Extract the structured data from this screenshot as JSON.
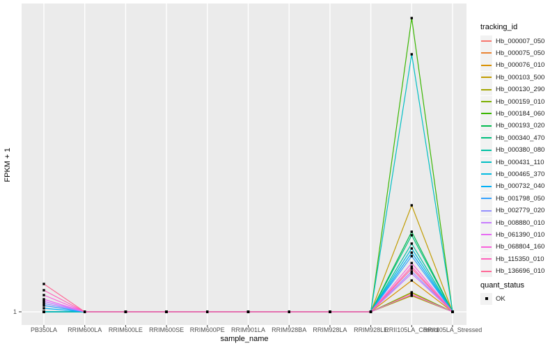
{
  "chart": {
    "x_axis_title": "sample_name",
    "y_axis_title": "FPKM + 1",
    "y_tick_label": "1"
  },
  "legend": {
    "tracking_title": "tracking_id",
    "quant_title": "quant_status",
    "quant_ok_label": "OK"
  },
  "colors": {
    "panel_bg": "#EBEBEB",
    "grid": "#FFFFFF",
    "legend_key_bg": "#F2F2F2",
    "tick_text": "#4D4D4D",
    "point": "#000000",
    "page_bg": "#FFFFFF"
  },
  "chart_data": {
    "type": "line",
    "title": "",
    "xlabel": "sample_name",
    "ylabel": "FPKM + 1",
    "x_tick_labels_overlap": true,
    "y_axis": {
      "ticks": [
        "1"
      ],
      "note": "only the value 1 is labeled on the y axis; series heights below are estimated pixel heights above the y=1 baseline"
    },
    "legend_position": "right",
    "grid": "vertical-white-on-gray",
    "point_marker": "small black square at every vertex (quant_status = OK)",
    "categories": [
      "PB350LA",
      "RRIM600LA",
      "RRIM600LE",
      "RRIM600SE",
      "RRIM600PE",
      "RRIM901LA",
      "RRIM928BA",
      "RRIM928LA",
      "RRIM928LE",
      "RRII105LA_Control",
      "RRII105LA_Stressed"
    ],
    "series": [
      {
        "name": "Hb_000007_050",
        "color": "#F8766D",
        "values": [
          0,
          0,
          0,
          0,
          0,
          0,
          0,
          0,
          0,
          24,
          0
        ]
      },
      {
        "name": "Hb_000075_050",
        "color": "#EA8331",
        "values": [
          0,
          0,
          0,
          0,
          0,
          0,
          0,
          0,
          0,
          27,
          0
        ]
      },
      {
        "name": "Hb_000076_010",
        "color": "#D89000",
        "values": [
          0,
          0,
          0,
          0,
          0,
          0,
          0,
          0,
          0,
          45,
          0
        ]
      },
      {
        "name": "Hb_000103_500",
        "color": "#C09B00",
        "values": [
          0,
          0,
          0,
          0,
          0,
          0,
          0,
          0,
          0,
          153,
          0
        ]
      },
      {
        "name": "Hb_000130_290",
        "color": "#A3A500",
        "values": [
          0,
          0,
          0,
          0,
          0,
          0,
          0,
          0,
          0,
          23,
          0
        ]
      },
      {
        "name": "Hb_000159_010",
        "color": "#7CAE00",
        "values": [
          0,
          0,
          0,
          0,
          0,
          0,
          0,
          0,
          0,
          28,
          0
        ]
      },
      {
        "name": "Hb_000184_060",
        "color": "#39B600",
        "values": [
          0,
          0,
          0,
          0,
          0,
          0,
          0,
          0,
          0,
          422,
          0
        ]
      },
      {
        "name": "Hb_000193_020",
        "color": "#00BB4E",
        "values": [
          0,
          0,
          0,
          0,
          0,
          0,
          0,
          0,
          0,
          115,
          0
        ]
      },
      {
        "name": "Hb_000340_470",
        "color": "#00BF7D",
        "values": [
          0,
          0,
          0,
          0,
          0,
          0,
          0,
          0,
          0,
          110,
          0
        ]
      },
      {
        "name": "Hb_000380_080",
        "color": "#00C1A3",
        "values": [
          0,
          0,
          0,
          0,
          0,
          0,
          0,
          0,
          0,
          98,
          0
        ]
      },
      {
        "name": "Hb_000431_110",
        "color": "#00BFC4",
        "values": [
          0,
          0,
          0,
          0,
          0,
          0,
          0,
          0,
          0,
          370,
          0
        ]
      },
      {
        "name": "Hb_000465_370",
        "color": "#00BAE0",
        "values": [
          0,
          0,
          0,
          0,
          0,
          0,
          0,
          0,
          0,
          91,
          0
        ]
      },
      {
        "name": "Hb_000732_040",
        "color": "#00B0F6",
        "values": [
          5,
          0,
          0,
          0,
          0,
          0,
          0,
          0,
          0,
          85,
          0
        ]
      },
      {
        "name": "Hb_001798_050",
        "color": "#35A2FF",
        "values": [
          9,
          0,
          0,
          0,
          0,
          0,
          0,
          0,
          0,
          80,
          0
        ]
      },
      {
        "name": "Hb_002779_020",
        "color": "#9590FF",
        "values": [
          12,
          0,
          0,
          0,
          0,
          0,
          0,
          0,
          0,
          58,
          0
        ]
      },
      {
        "name": "Hb_008880_010",
        "color": "#C77CFF",
        "values": [
          15,
          0,
          0,
          0,
          0,
          0,
          0,
          0,
          0,
          55,
          0
        ]
      },
      {
        "name": "Hb_061390_010",
        "color": "#E76BF3",
        "values": [
          18,
          0,
          0,
          0,
          0,
          0,
          0,
          0,
          0,
          25,
          0
        ]
      },
      {
        "name": "Hb_068804_160",
        "color": "#FA62DB",
        "values": [
          24,
          0,
          0,
          0,
          0,
          0,
          0,
          0,
          0,
          70,
          0
        ]
      },
      {
        "name": "Hb_115350_010",
        "color": "#FF62BC",
        "values": [
          31,
          0,
          0,
          0,
          0,
          0,
          0,
          0,
          0,
          65,
          0
        ]
      },
      {
        "name": "Hb_136696_010",
        "color": "#FF6A98",
        "values": [
          40,
          0,
          0,
          0,
          0,
          0,
          0,
          0,
          0,
          62,
          0
        ]
      }
    ]
  }
}
